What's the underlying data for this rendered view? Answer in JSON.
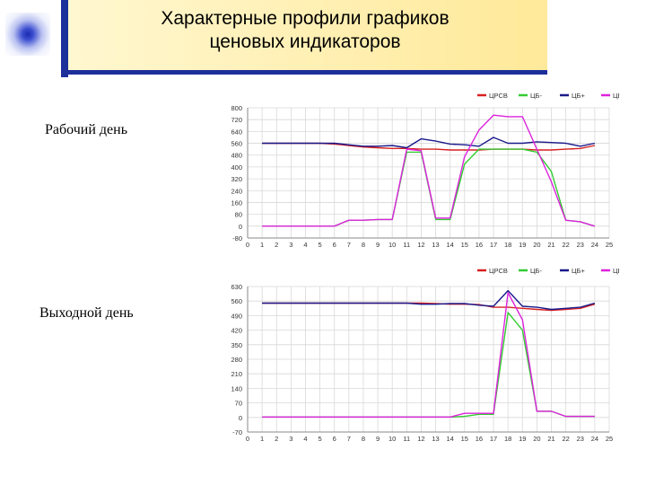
{
  "slide": {
    "title_line1": "Характерные профили графиков",
    "title_line2": "ценовых индикаторов",
    "label_workday": "Рабочий день",
    "label_weekend": "Выходной день"
  },
  "colors": {
    "header_bar": "#1d2f9a",
    "ЦРСВ": "#d62020",
    "ЦБ-": "#33cc33",
    "ЦБ+": "#1a1a8c",
    "ЦБР": "#dd22dd"
  },
  "chart_data": [
    {
      "type": "line",
      "title": "",
      "legend_position": "top-right",
      "grid": true,
      "x": [
        0,
        1,
        2,
        3,
        4,
        5,
        6,
        7,
        8,
        9,
        10,
        11,
        12,
        13,
        14,
        15,
        16,
        17,
        18,
        19,
        20,
        21,
        22,
        23,
        24,
        25
      ],
      "xlim": [
        0,
        25
      ],
      "ylim": [
        0,
        800
      ],
      "yticks": [
        "800",
        "720",
        "640",
        "560",
        "480",
        "400",
        "320",
        "240",
        "160",
        "80",
        "0",
        "-80"
      ],
      "ytick_values": [
        800,
        720,
        640,
        560,
        480,
        400,
        320,
        240,
        160,
        80,
        0,
        -80
      ],
      "series": [
        {
          "name": "ЦРСВ",
          "color": "#d62020",
          "x": [
            1,
            2,
            3,
            4,
            5,
            6,
            7,
            8,
            9,
            10,
            11,
            12,
            13,
            14,
            15,
            16,
            17,
            18,
            19,
            20,
            21,
            22,
            23,
            24
          ],
          "values": [
            560,
            560,
            560,
            560,
            560,
            555,
            545,
            535,
            530,
            525,
            525,
            520,
            520,
            515,
            515,
            515,
            520,
            520,
            520,
            515,
            515,
            520,
            525,
            545
          ]
        },
        {
          "name": "ЦБ-",
          "color": "#33cc33",
          "x": [
            1,
            2,
            3,
            4,
            5,
            6,
            7,
            8,
            9,
            10,
            11,
            12,
            13,
            14,
            15,
            16,
            17,
            18,
            19,
            20,
            21,
            22,
            23,
            24
          ],
          "values": [
            0,
            0,
            0,
            0,
            0,
            0,
            40,
            40,
            45,
            45,
            500,
            500,
            45,
            45,
            420,
            520,
            520,
            520,
            520,
            500,
            370,
            40,
            30,
            0
          ]
        },
        {
          "name": "ЦБ+",
          "color": "#1a1a8c",
          "x": [
            1,
            2,
            3,
            4,
            5,
            6,
            7,
            8,
            9,
            10,
            11,
            12,
            13,
            14,
            15,
            16,
            17,
            18,
            19,
            20,
            21,
            22,
            23,
            24
          ],
          "values": [
            560,
            560,
            560,
            560,
            560,
            560,
            550,
            540,
            540,
            545,
            530,
            590,
            575,
            555,
            550,
            540,
            600,
            560,
            560,
            570,
            565,
            560,
            540,
            560
          ]
        },
        {
          "name": "ЦБР",
          "color": "#dd22dd",
          "x": [
            1,
            2,
            3,
            4,
            5,
            6,
            7,
            8,
            9,
            10,
            11,
            12,
            13,
            14,
            15,
            16,
            17,
            18,
            19,
            20,
            21,
            22,
            23,
            24
          ],
          "values": [
            0,
            0,
            0,
            0,
            0,
            0,
            40,
            40,
            45,
            45,
            520,
            510,
            55,
            55,
            470,
            650,
            750,
            740,
            740,
            520,
            300,
            40,
            30,
            0
          ]
        }
      ]
    },
    {
      "type": "line",
      "title": "",
      "legend_position": "top-right",
      "grid": true,
      "x": [
        0,
        1,
        2,
        3,
        4,
        5,
        6,
        7,
        8,
        9,
        10,
        11,
        12,
        13,
        14,
        15,
        16,
        17,
        18,
        19,
        20,
        21,
        22,
        23,
        24,
        25
      ],
      "xlim": [
        0,
        25
      ],
      "ylim": [
        -70,
        630
      ],
      "yticks": [
        "630",
        "560",
        "490",
        "420",
        "350",
        "280",
        "210",
        "140",
        "70",
        "0",
        "-70"
      ],
      "ytick_values": [
        630,
        560,
        490,
        420,
        350,
        280,
        210,
        140,
        70,
        0,
        -70
      ],
      "series": [
        {
          "name": "ЦРСВ",
          "color": "#d62020",
          "x": [
            1,
            2,
            3,
            4,
            5,
            6,
            7,
            8,
            9,
            10,
            11,
            12,
            13,
            14,
            15,
            16,
            17,
            18,
            19,
            20,
            21,
            22,
            23,
            24
          ],
          "values": [
            550,
            550,
            550,
            550,
            550,
            550,
            550,
            550,
            550,
            550,
            550,
            550,
            548,
            545,
            545,
            543,
            530,
            530,
            525,
            520,
            515,
            520,
            525,
            545
          ]
        },
        {
          "name": "ЦБ-",
          "color": "#33cc33",
          "x": [
            1,
            2,
            3,
            4,
            5,
            6,
            7,
            8,
            9,
            10,
            11,
            12,
            13,
            14,
            15,
            16,
            17,
            18,
            19,
            20,
            21,
            22,
            23,
            24
          ],
          "values": [
            2,
            2,
            2,
            2,
            2,
            2,
            2,
            2,
            2,
            2,
            2,
            2,
            2,
            2,
            5,
            15,
            15,
            505,
            420,
            30,
            30,
            5,
            5,
            5
          ]
        },
        {
          "name": "ЦБ+",
          "color": "#1a1a8c",
          "x": [
            1,
            2,
            3,
            4,
            5,
            6,
            7,
            8,
            9,
            10,
            11,
            12,
            13,
            14,
            15,
            16,
            17,
            18,
            19,
            20,
            21,
            22,
            23,
            24
          ],
          "values": [
            550,
            550,
            550,
            550,
            550,
            550,
            550,
            550,
            550,
            550,
            550,
            545,
            545,
            548,
            548,
            540,
            535,
            610,
            535,
            530,
            520,
            525,
            530,
            550
          ]
        },
        {
          "name": "ЦБР",
          "color": "#dd22dd",
          "x": [
            1,
            2,
            3,
            4,
            5,
            6,
            7,
            8,
            9,
            10,
            11,
            12,
            13,
            14,
            15,
            16,
            17,
            18,
            19,
            20,
            21,
            22,
            23,
            24
          ],
          "values": [
            2,
            2,
            2,
            2,
            2,
            2,
            2,
            2,
            2,
            2,
            2,
            2,
            2,
            2,
            20,
            20,
            20,
            600,
            470,
            30,
            30,
            5,
            5,
            5
          ]
        }
      ]
    }
  ]
}
